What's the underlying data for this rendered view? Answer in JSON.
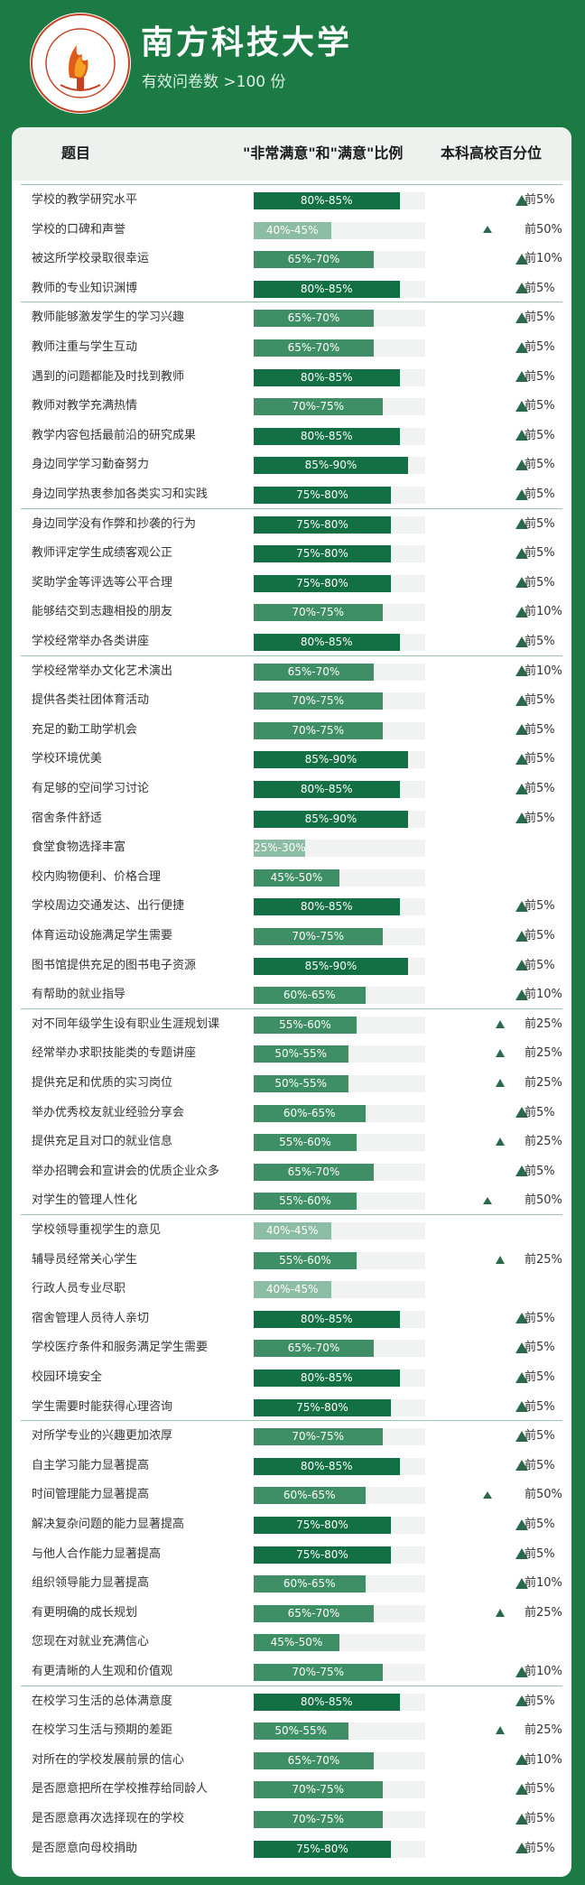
{
  "header": {
    "title": "南方科技大学",
    "subtitle": "有效问卷数 >100 份"
  },
  "columns": {
    "topic": "题目",
    "ratio": "\"非常满意\"和\"满意\"比例",
    "percentile": "本科高校百分位"
  },
  "colors": {
    "background": "#1c7a44",
    "bar_high": "#137045",
    "bar_mid": "#3e8f66",
    "bar_low": "#8dbca4",
    "triangle": "#2a6a4a"
  },
  "groups": [
    4,
    11,
    16,
    28,
    35,
    42,
    51
  ],
  "chart_data": {
    "type": "bar",
    "categories": [
      "学校的教学研究水平",
      "学校的口碑和声誉",
      "被这所学校录取很幸运",
      "教师的专业知识渊博",
      "教师能够激发学生的学习兴趣",
      "教师注重与学生互动",
      "遇到的问题都能及时找到教师",
      "教师对教学充满热情",
      "教学内容包括最前沿的研究成果",
      "身边同学学习勤奋努力",
      "身边同学热衷参加各类实习和实践",
      "身边同学没有作弊和抄袭的行为",
      "教师评定学生成绩客观公正",
      "奖助学金等评选等公平合理",
      "能够结交到志趣相投的朋友",
      "学校经常举办各类讲座",
      "学校经常举办文化艺术演出",
      "提供各类社团体育活动",
      "充足的勤工助学机会",
      "学校环境优美",
      "有足够的空间学习讨论",
      "宿舍条件舒适",
      "食堂食物选择丰富",
      "校内购物便利、价格合理",
      "学校周边交通发达、出行便捷",
      "体育运动设施满足学生需要",
      "图书馆提供充足的图书电子资源",
      "有帮助的就业指导",
      "对不同年级学生设有职业生涯规划课",
      "经常举办求职技能类的专题讲座",
      "提供充足和优质的实习岗位",
      "举办优秀校友就业经验分享会",
      "提供充足且对口的就业信息",
      "举办招聘会和宣讲会的优质企业众多",
      "对学生的管理人性化",
      "学校领导重视学生的意见",
      "辅导员经常关心学生",
      "行政人员专业尽职",
      "宿舍管理人员待人亲切",
      "学校医疗条件和服务满足学生需要",
      "校园环境安全",
      "学生需要时能获得心理咨询",
      "对所学专业的兴趣更加浓厚",
      "自主学习能力显著提高",
      "时间管理能力显著提高",
      "解决复杂问题的能力显著提高",
      "与他人合作能力显著提高",
      "组织领导能力显著提高",
      "有更明确的成长规划",
      "您现在对就业充满信心",
      "有更清晰的人生观和价值观",
      "在校学习生活的总体满意度",
      "在校学习生活与预期的差距",
      "对所在的学校发展前景的信心",
      "是否愿意把所在学校推荐给同龄人",
      "是否愿意再次选择现在的学校",
      "是否愿意向母校捐助"
    ],
    "ranges": [
      "80%-85%",
      "40%-45%",
      "65%-70%",
      "80%-85%",
      "65%-70%",
      "65%-70%",
      "80%-85%",
      "70%-75%",
      "80%-85%",
      "85%-90%",
      "75%-80%",
      "75%-80%",
      "75%-80%",
      "75%-80%",
      "70%-75%",
      "80%-85%",
      "65%-70%",
      "70%-75%",
      "70%-75%",
      "85%-90%",
      "80%-85%",
      "85%-90%",
      "25%-30%",
      "45%-50%",
      "80%-85%",
      "70%-75%",
      "85%-90%",
      "60%-65%",
      "55%-60%",
      "50%-55%",
      "50%-55%",
      "60%-65%",
      "55%-60%",
      "65%-70%",
      "55%-60%",
      "40%-45%",
      "55%-60%",
      "40%-45%",
      "80%-85%",
      "65%-70%",
      "80%-85%",
      "75%-80%",
      "70%-75%",
      "80%-85%",
      "60%-65%",
      "75%-80%",
      "75%-80%",
      "60%-65%",
      "65%-70%",
      "45%-50%",
      "70%-75%",
      "80%-85%",
      "50%-55%",
      "65%-70%",
      "70%-75%",
      "70%-75%",
      "75%-80%"
    ],
    "values_low": [
      80,
      40,
      65,
      80,
      65,
      65,
      80,
      70,
      80,
      85,
      75,
      75,
      75,
      75,
      70,
      80,
      65,
      70,
      70,
      85,
      80,
      85,
      25,
      45,
      80,
      70,
      85,
      60,
      55,
      50,
      50,
      60,
      55,
      65,
      55,
      40,
      55,
      40,
      80,
      65,
      80,
      75,
      70,
      80,
      60,
      75,
      75,
      60,
      65,
      45,
      70,
      80,
      50,
      65,
      70,
      70,
      75
    ],
    "values_high": [
      85,
      45,
      70,
      85,
      70,
      70,
      85,
      75,
      85,
      90,
      80,
      80,
      80,
      80,
      75,
      85,
      70,
      75,
      75,
      90,
      85,
      90,
      30,
      50,
      85,
      75,
      90,
      65,
      60,
      55,
      55,
      65,
      60,
      70,
      60,
      45,
      60,
      45,
      85,
      70,
      85,
      80,
      75,
      85,
      65,
      80,
      80,
      65,
      70,
      50,
      75,
      85,
      55,
      70,
      75,
      75,
      80
    ],
    "percentile": [
      "前5%",
      "前50%",
      "前10%",
      "前5%",
      "前5%",
      "前5%",
      "前5%",
      "前5%",
      "前5%",
      "前5%",
      "前5%",
      "前5%",
      "前5%",
      "前5%",
      "前10%",
      "前5%",
      "前10%",
      "前5%",
      "前5%",
      "前5%",
      "前5%",
      "前5%",
      "",
      "",
      "前5%",
      "前5%",
      "前5%",
      "前10%",
      "前25%",
      "前25%",
      "前25%",
      "前5%",
      "前25%",
      "前5%",
      "前50%",
      "",
      "前25%",
      "",
      "前5%",
      "前5%",
      "前5%",
      "前5%",
      "前5%",
      "前5%",
      "前50%",
      "前5%",
      "前5%",
      "前10%",
      "前25%",
      "",
      "前10%",
      "前5%",
      "前25%",
      "前10%",
      "前5%",
      "前5%",
      "前5%"
    ],
    "xlim": [
      0,
      100
    ]
  }
}
